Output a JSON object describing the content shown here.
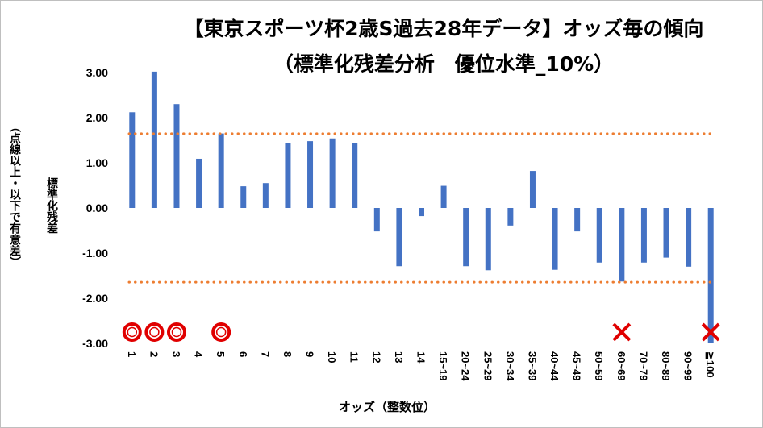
{
  "chart_data": {
    "type": "bar",
    "title": "【東京スポーツ杯2歳S過去28年データ】オッズ毎の傾向",
    "subtitle": "（標準化残差分析　優位水準_10%）",
    "xlabel": "オッズ（整数位）",
    "ylabel": "標準化残差",
    "ylabel_note": "（点線以上・以下で有意差）",
    "ylim": [
      -3.0,
      3.0
    ],
    "yticks": [
      "3.00",
      "2.00",
      "1.00",
      "0.00",
      "-1.00",
      "-2.00",
      "-3.00"
    ],
    "categories": [
      "1",
      "2",
      "3",
      "4",
      "5",
      "6",
      "7",
      "8",
      "9",
      "10",
      "11",
      "12",
      "13",
      "14",
      "15~19",
      "20~24",
      "25~29",
      "30~34",
      "35~39",
      "40~44",
      "45~49",
      "50~59",
      "60~69",
      "70~79",
      "80~89",
      "90~99",
      "≧100"
    ],
    "values": [
      2.12,
      3.02,
      2.3,
      1.09,
      1.65,
      0.48,
      0.55,
      1.43,
      1.48,
      1.54,
      1.43,
      -0.52,
      -1.29,
      -0.18,
      0.49,
      -1.29,
      -1.38,
      -0.39,
      0.82,
      -1.37,
      -0.52,
      -1.21,
      -1.63,
      -1.21,
      -1.1,
      -1.3,
      -3.0
    ],
    "threshold_lines": [
      1.645,
      -1.645
    ],
    "markers": [
      {
        "category": "1",
        "symbol": "○"
      },
      {
        "category": "2",
        "symbol": "○"
      },
      {
        "category": "3",
        "symbol": "○"
      },
      {
        "category": "5",
        "symbol": "○"
      },
      {
        "category": "60~69",
        "symbol": "×"
      },
      {
        "category": "≧100",
        "symbol": "×"
      }
    ],
    "colors": {
      "bar": "#4472c4",
      "threshold": "#ed7d31",
      "circle": "#e00000",
      "cross": "#e00000"
    }
  }
}
